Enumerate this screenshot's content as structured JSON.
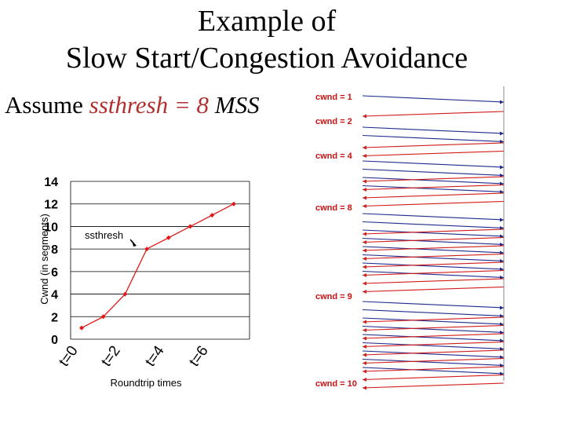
{
  "title": {
    "line1": "Example  of",
    "line2": "Slow Start/Congestion Avoidance"
  },
  "assumption": {
    "prefix": "Assume ",
    "expr": "ssthresh = 8 ",
    "unit": "MSS"
  },
  "colors": {
    "line": "#e01818",
    "grid": "#000000",
    "timeline_dark": "#1f2a8c",
    "timeline_red": "#d21b1b",
    "label_red": "#cc1111"
  },
  "chart_data": {
    "type": "line",
    "title": "",
    "xlabel": "Roundtrip times",
    "ylabel": "Cwnd (in segments)",
    "ylim": [
      0,
      14
    ],
    "yticks": [
      0,
      2,
      4,
      6,
      8,
      10,
      12,
      14
    ],
    "xticks": [
      "t=0",
      "t=2",
      "t=4",
      "t=6"
    ],
    "x": [
      0,
      1,
      2,
      3,
      4,
      5,
      6,
      7
    ],
    "values": [
      1,
      2,
      4,
      8,
      9,
      10,
      11,
      12
    ],
    "annotation": {
      "text": "ssthresh",
      "points_to_index": 3
    }
  },
  "timeline": {
    "labels": [
      "cwnd = 1",
      "cwnd = 2",
      "cwnd = 4",
      "cwnd = 8",
      "cwnd = 9",
      "cwnd = 10"
    ]
  }
}
